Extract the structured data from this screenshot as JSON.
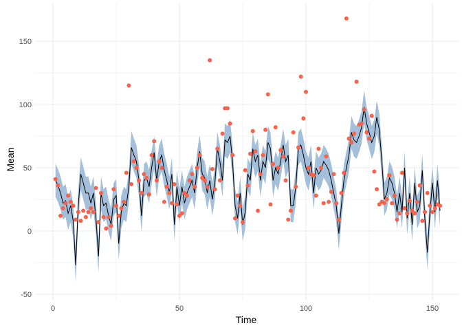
{
  "chart_data": {
    "type": "line",
    "title": "",
    "xlabel": "Time",
    "ylabel": "Mean",
    "xlim": [
      -7,
      160
    ],
    "ylim": [
      -53,
      180
    ],
    "x_ticks": [
      "0",
      "50",
      "100",
      "150"
    ],
    "y_ticks": [
      "-50",
      "0",
      "50",
      "100",
      "150"
    ],
    "grid": true,
    "legend": "none",
    "colors": {
      "ribbon": "#a3bfda",
      "line": "#000000",
      "points": "#f8614a",
      "grid": "#ebebeb"
    },
    "interval_half_width": 13,
    "fitted": [
      40,
      36,
      30,
      22,
      24,
      14,
      20,
      8,
      -27,
      20,
      45,
      38,
      30,
      30,
      22,
      30,
      10,
      -20,
      30,
      20,
      22,
      12,
      5,
      25,
      28,
      -10,
      15,
      22,
      20,
      35,
      66,
      60,
      55,
      40,
      12,
      40,
      42,
      35,
      50,
      62,
      40,
      55,
      60,
      48,
      40,
      30,
      45,
      5,
      35,
      20,
      35,
      22,
      30,
      35,
      40,
      30,
      50,
      63,
      45,
      42,
      30,
      40,
      25,
      38,
      65,
      55,
      40,
      72,
      70,
      75,
      55,
      20,
      10,
      30,
      5,
      15,
      45,
      40,
      65,
      55,
      60,
      40,
      55,
      50,
      70,
      65,
      40,
      50,
      45,
      55,
      68,
      55,
      60,
      20,
      20,
      35,
      65,
      68,
      60,
      50,
      45,
      55,
      30,
      50,
      45,
      48,
      55,
      52,
      48,
      40,
      30,
      20,
      -2,
      20,
      40,
      50,
      60,
      78,
      72,
      70,
      75,
      82,
      98,
      85,
      78,
      70,
      75,
      90,
      80,
      55,
      25,
      30,
      42,
      38,
      30,
      15,
      30,
      15,
      50,
      10,
      30,
      5,
      38,
      15,
      20,
      48,
      10,
      -17,
      15,
      38,
      15,
      40,
      16
    ],
    "observed": [
      41,
      36,
      12,
      18,
      22,
      28,
      23,
      20,
      9,
      15,
      8,
      16,
      11,
      15,
      18,
      15,
      34,
      7,
      30,
      11,
      2,
      11,
      4,
      33,
      20,
      12,
      18,
      23,
      46,
      115,
      37,
      55,
      50,
      40,
      30,
      45,
      42,
      29,
      60,
      71,
      40,
      55,
      50,
      23,
      35,
      30,
      22,
      37,
      21,
      12,
      14,
      30,
      28,
      40,
      45,
      35,
      50,
      60,
      42,
      40,
      35,
      135,
      49,
      33,
      65,
      40,
      77,
      97,
      97,
      85,
      60,
      10,
      28,
      20,
      7,
      48,
      36,
      61,
      79,
      63,
      16,
      45,
      60,
      80,
      108,
      21,
      53,
      82,
      50,
      64,
      59,
      40,
      9,
      16,
      78,
      35,
      66,
      122,
      89,
      110,
      50,
      45,
      44,
      28,
      65,
      50,
      22,
      59,
      23,
      31,
      45,
      22,
      9,
      30,
      46,
      168,
      73,
      70,
      77,
      118,
      84,
      85,
      96,
      78,
      73,
      91,
      47,
      33,
      21,
      23,
      22,
      25,
      44,
      22,
      28,
      9,
      14,
      46,
      18,
      14,
      24,
      16,
      14,
      23,
      36,
      8,
      15,
      30,
      20,
      15,
      18,
      21,
      20
    ]
  }
}
